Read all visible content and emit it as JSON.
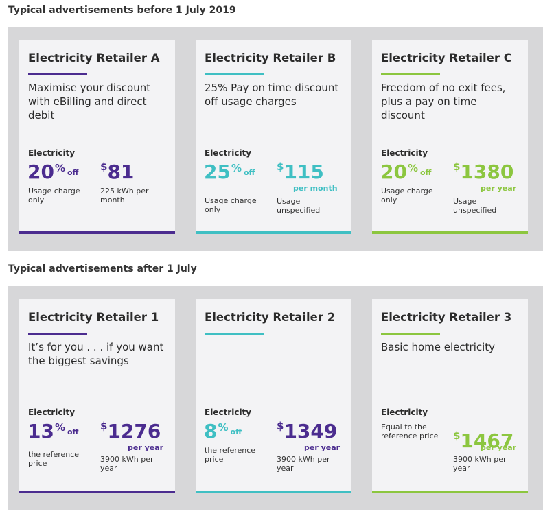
{
  "colors": {
    "retailer_a": "#4b2c8f",
    "retailer_b": "#3fbfc3",
    "retailer_c": "#8cc63f"
  },
  "sections": [
    {
      "title": "Typical advertisements before 1 July 2019",
      "cards": [
        {
          "title": "Electricity Retailer A",
          "description": "Maximise your discount with eBilling and direct debit",
          "electricity_label": "Electricity",
          "discount_value": "20",
          "discount_pct": "%",
          "discount_off": "off",
          "discount_note": "Usage charge only",
          "currency": "$",
          "price": "81",
          "price_period": "",
          "usage_note": "225 kWh per month"
        },
        {
          "title": "Electricity Retailer B",
          "description": "25% Pay on time discount off usage charges",
          "electricity_label": "Electricity",
          "discount_value": "25",
          "discount_pct": "%",
          "discount_off": "off",
          "discount_note": "Usage charge only",
          "currency": "$",
          "price": "115",
          "price_period": "per month",
          "usage_note": "Usage unspecified"
        },
        {
          "title": "Electricity Retailer C",
          "description": "Freedom of no exit fees, plus a pay on time discount",
          "electricity_label": "Electricity",
          "discount_value": "20",
          "discount_pct": "%",
          "discount_off": "off",
          "discount_note": "Usage charge only",
          "currency": "$",
          "price": "1380",
          "price_period": "per year",
          "usage_note": "Usage unspecified"
        }
      ]
    },
    {
      "title": "Typical advertisements after 1 July",
      "cards": [
        {
          "title": "Electricity Retailer 1",
          "description": "It’s for you . . . if you want the biggest savings",
          "electricity_label": "Electricity",
          "discount_value": "13",
          "discount_pct": "%",
          "discount_off": "off",
          "discount_note": "the reference price",
          "currency": "$",
          "price": "1276",
          "price_period": "per year",
          "usage_note": "3900 kWh per year"
        },
        {
          "title": "Electricity Retailer 2",
          "description": "",
          "electricity_label": "Electricity",
          "discount_value": "8",
          "discount_pct": "%",
          "discount_off": "off",
          "discount_note": "the reference price",
          "currency": "$",
          "price": "1349",
          "price_period": "per year",
          "usage_note": "3900 kWh per year"
        },
        {
          "title": "Electricity Retailer 3",
          "description": "Basic home electricity",
          "electricity_label": "Electricity",
          "discount_value": "",
          "discount_pct": "",
          "discount_off": "",
          "discount_note": "Equal to the reference price",
          "currency": "$",
          "price": "1467",
          "price_period": "per year",
          "usage_note": "3900 kWh per year"
        }
      ]
    }
  ]
}
